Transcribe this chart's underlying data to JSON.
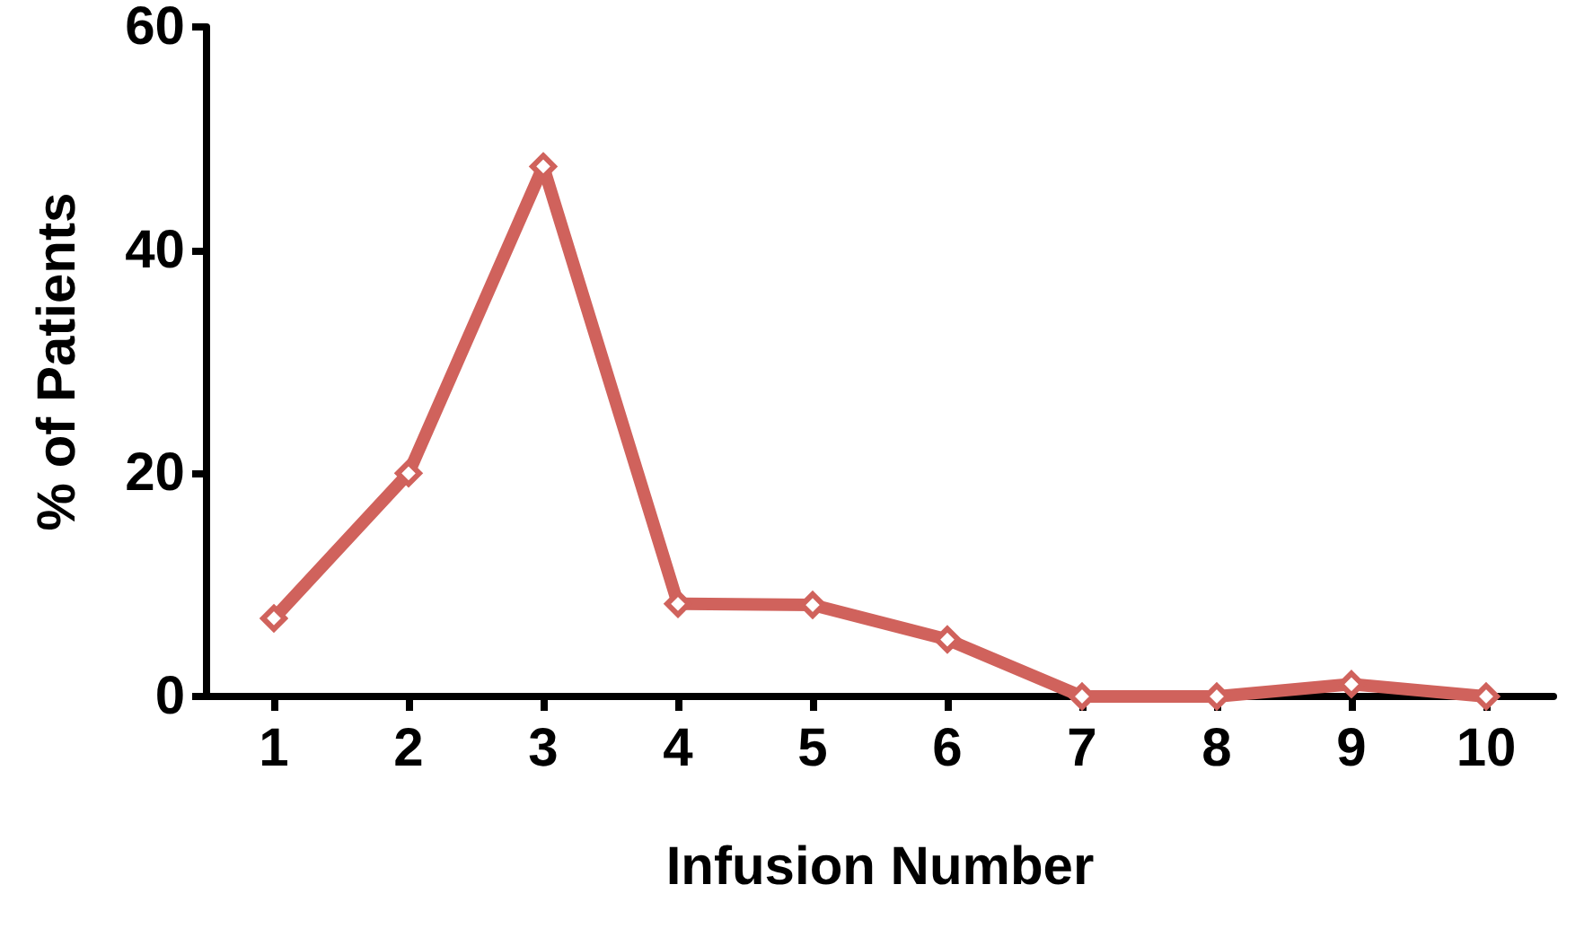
{
  "chart_data": {
    "type": "line",
    "xlabel": "Infusion Number",
    "ylabel": "% of Patients",
    "categories": [
      "1",
      "2",
      "3",
      "4",
      "5",
      "6",
      "7",
      "8",
      "9",
      "10"
    ],
    "series": [
      {
        "color": "#d0625c",
        "values": [
          7,
          20,
          47.5,
          8.3,
          8.2,
          5.1,
          0,
          0,
          1.1,
          0
        ]
      }
    ],
    "ylim": [
      0,
      60
    ],
    "yticks": [
      0,
      20,
      40,
      60
    ],
    "grid": false,
    "marker": "diamond",
    "line_style": "solid"
  }
}
